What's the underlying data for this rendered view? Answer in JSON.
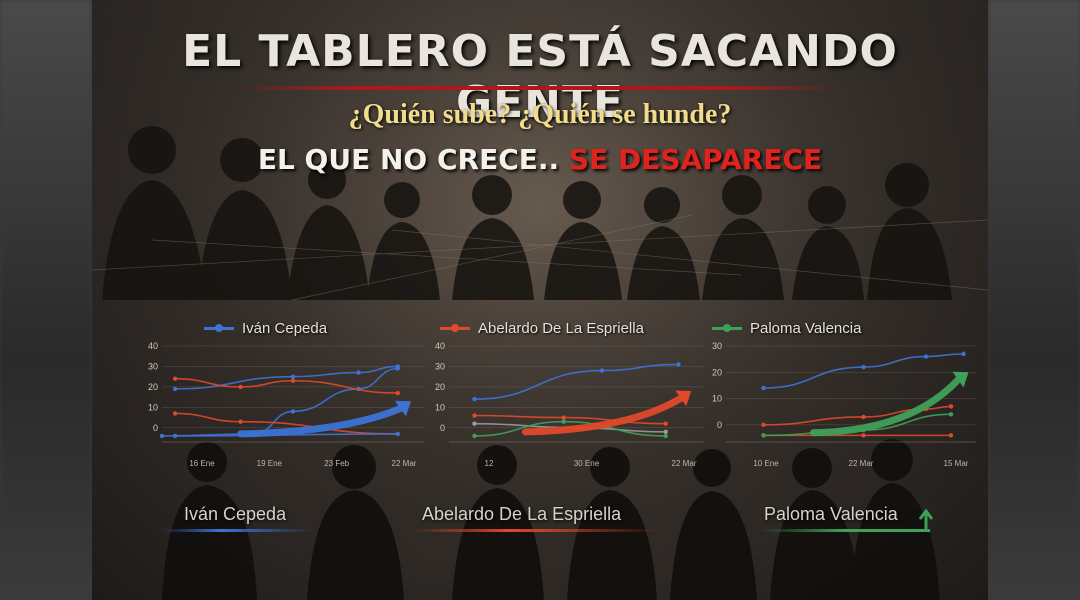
{
  "poster": {
    "title": "EL TABLERO ESTÁ SACANDO GENTE",
    "subtitle": "¿Quién sube? ¿Quién se hunde?",
    "tagline_part1": "EL QUE NO CRECE..",
    "tagline_part2": "SE DESAPARECE"
  },
  "colors": {
    "blue": "#3d73d6",
    "red": "#e0492a",
    "green": "#3fa05a",
    "gray": "#9a9a9a",
    "title": "#e9e5dd",
    "subtitle": "#f1dc8c",
    "accent_red": "#e0231c"
  },
  "bottom_labels": {
    "cepeda": "Iván Cepeda",
    "espriella": "Abelardo De La Espriella",
    "valencia": "Paloma Valencia"
  },
  "chart_data": [
    {
      "type": "line",
      "legend_label": "Iván Cepeda",
      "highlight": "blue",
      "ylim": [
        -5,
        40
      ],
      "yticks": [
        0,
        10,
        20,
        30,
        40
      ],
      "tick_labels": [
        "16 Ene",
        "19 Ene",
        "23 Feb",
        "22 Mar"
      ],
      "series": [
        {
          "color": "blue",
          "x": [
            0,
            0.35,
            0.5,
            0.75,
            0.9
          ],
          "y": [
            -4,
            -3,
            8,
            19,
            29
          ]
        },
        {
          "color": "blue",
          "x": [
            0.05,
            0.5,
            0.75,
            0.9
          ],
          "y": [
            19,
            25,
            27,
            30
          ]
        },
        {
          "color": "red",
          "x": [
            0.05,
            0.3,
            0.5,
            0.9
          ],
          "y": [
            24,
            20,
            23,
            17
          ]
        },
        {
          "color": "red",
          "x": [
            0.05,
            0.3,
            0.9
          ],
          "y": [
            7,
            3,
            -3
          ]
        },
        {
          "color": "blue",
          "x": [
            0.05,
            0.9
          ],
          "y": [
            -4,
            -3
          ]
        }
      ],
      "trend_arrow": {
        "from": [
          0.3,
          -3
        ],
        "to": [
          0.95,
          13
        ]
      }
    },
    {
      "type": "line",
      "legend_label": "Abelardo De La Espriella",
      "highlight": "red",
      "ylim": [
        -5,
        40
      ],
      "yticks": [
        0,
        10,
        20,
        30,
        40
      ],
      "tick_labels": [
        "12",
        "30 Ene",
        "22 Mar"
      ],
      "series": [
        {
          "color": "blue",
          "x": [
            0.1,
            0.6,
            0.9
          ],
          "y": [
            14,
            28,
            31
          ]
        },
        {
          "color": "red",
          "x": [
            0.1,
            0.45,
            0.85
          ],
          "y": [
            6,
            5,
            2
          ]
        },
        {
          "color": "gray",
          "x": [
            0.1,
            0.5,
            0.85
          ],
          "y": [
            2,
            0,
            -2
          ]
        },
        {
          "color": "green",
          "x": [
            0.1,
            0.45,
            0.85
          ],
          "y": [
            -4,
            3,
            -4
          ]
        }
      ],
      "trend_arrow": {
        "from": [
          0.3,
          -2
        ],
        "to": [
          0.95,
          18
        ]
      }
    },
    {
      "type": "line",
      "legend_label": "Paloma Valencia",
      "highlight": "green",
      "ylim": [
        -5,
        30
      ],
      "yticks": [
        0,
        10,
        20,
        30
      ],
      "tick_labels": [
        "10 Ene",
        "22 Mar",
        "15 Mar"
      ],
      "series": [
        {
          "color": "blue",
          "x": [
            0.15,
            0.55,
            0.8,
            0.95
          ],
          "y": [
            14,
            22,
            26,
            27
          ]
        },
        {
          "color": "red",
          "x": [
            0.15,
            0.55,
            0.8,
            0.9
          ],
          "y": [
            0,
            3,
            6,
            7
          ]
        },
        {
          "color": "red",
          "x": [
            0.15,
            0.55,
            0.9
          ],
          "y": [
            -4,
            -4,
            -4
          ]
        },
        {
          "color": "green",
          "x": [
            0.15,
            0.55,
            0.9
          ],
          "y": [
            -4,
            -2,
            4
          ]
        }
      ],
      "trend_arrow": {
        "from": [
          0.35,
          -3
        ],
        "to": [
          0.97,
          20
        ]
      }
    }
  ]
}
